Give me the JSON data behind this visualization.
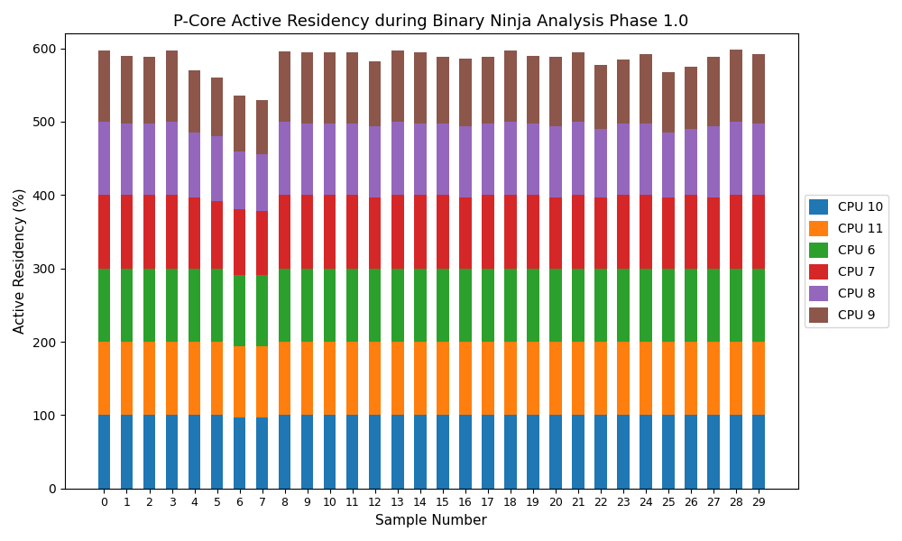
{
  "title": "P-Core Active Residency during Binary Ninja Analysis Phase 1.0",
  "xlabel": "Sample Number",
  "ylabel": "Active Residency (%)",
  "categories": [
    0,
    1,
    2,
    3,
    4,
    5,
    6,
    7,
    8,
    9,
    10,
    11,
    12,
    13,
    14,
    15,
    16,
    17,
    18,
    19,
    20,
    21,
    22,
    23,
    24,
    25,
    26,
    27,
    28,
    29
  ],
  "cpu10": [
    100,
    100,
    100,
    100,
    100,
    100,
    97,
    97,
    100,
    100,
    100,
    100,
    100,
    100,
    100,
    100,
    100,
    100,
    100,
    100,
    100,
    100,
    100,
    100,
    100,
    100,
    100,
    100,
    100,
    100
  ],
  "cpu11": [
    100,
    100,
    100,
    100,
    100,
    100,
    97,
    97,
    100,
    100,
    100,
    100,
    100,
    100,
    100,
    100,
    100,
    100,
    100,
    100,
    100,
    100,
    100,
    100,
    100,
    100,
    100,
    100,
    100,
    100
  ],
  "cpu6": [
    100,
    100,
    100,
    100,
    100,
    100,
    97,
    97,
    100,
    100,
    100,
    100,
    100,
    100,
    100,
    100,
    100,
    100,
    100,
    100,
    100,
    100,
    100,
    100,
    100,
    100,
    100,
    100,
    100,
    100
  ],
  "cpu7": [
    100,
    100,
    100,
    100,
    97,
    92,
    90,
    87,
    100,
    100,
    100,
    100,
    97,
    100,
    100,
    100,
    97,
    100,
    100,
    100,
    97,
    100,
    97,
    100,
    100,
    97,
    100,
    97,
    100,
    100
  ],
  "cpu8": [
    100,
    97,
    97,
    100,
    88,
    88,
    78,
    78,
    100,
    97,
    97,
    97,
    97,
    100,
    97,
    97,
    97,
    97,
    100,
    97,
    97,
    100,
    93,
    97,
    97,
    88,
    90,
    97,
    100,
    97
  ],
  "cpu9": [
    97,
    93,
    91,
    97,
    85,
    80,
    77,
    73,
    96,
    97,
    97,
    97,
    88,
    97,
    97,
    92,
    92,
    92,
    97,
    93,
    95,
    95,
    88,
    88,
    95,
    83,
    85,
    95,
    98,
    95
  ],
  "colors": {
    "cpu10": "#1f77b4",
    "cpu11": "#ff7f0e",
    "cpu6": "#2ca02c",
    "cpu7": "#d62728",
    "cpu8": "#9467bd",
    "cpu9": "#8c564b"
  },
  "legend_labels": [
    "CPU 10",
    "CPU 11",
    "CPU 6",
    "CPU 7",
    "CPU 8",
    "CPU 9"
  ],
  "figsize": [
    10,
    6
  ],
  "dpi": 100,
  "ylim": [
    0,
    620
  ],
  "bar_width": 0.55
}
